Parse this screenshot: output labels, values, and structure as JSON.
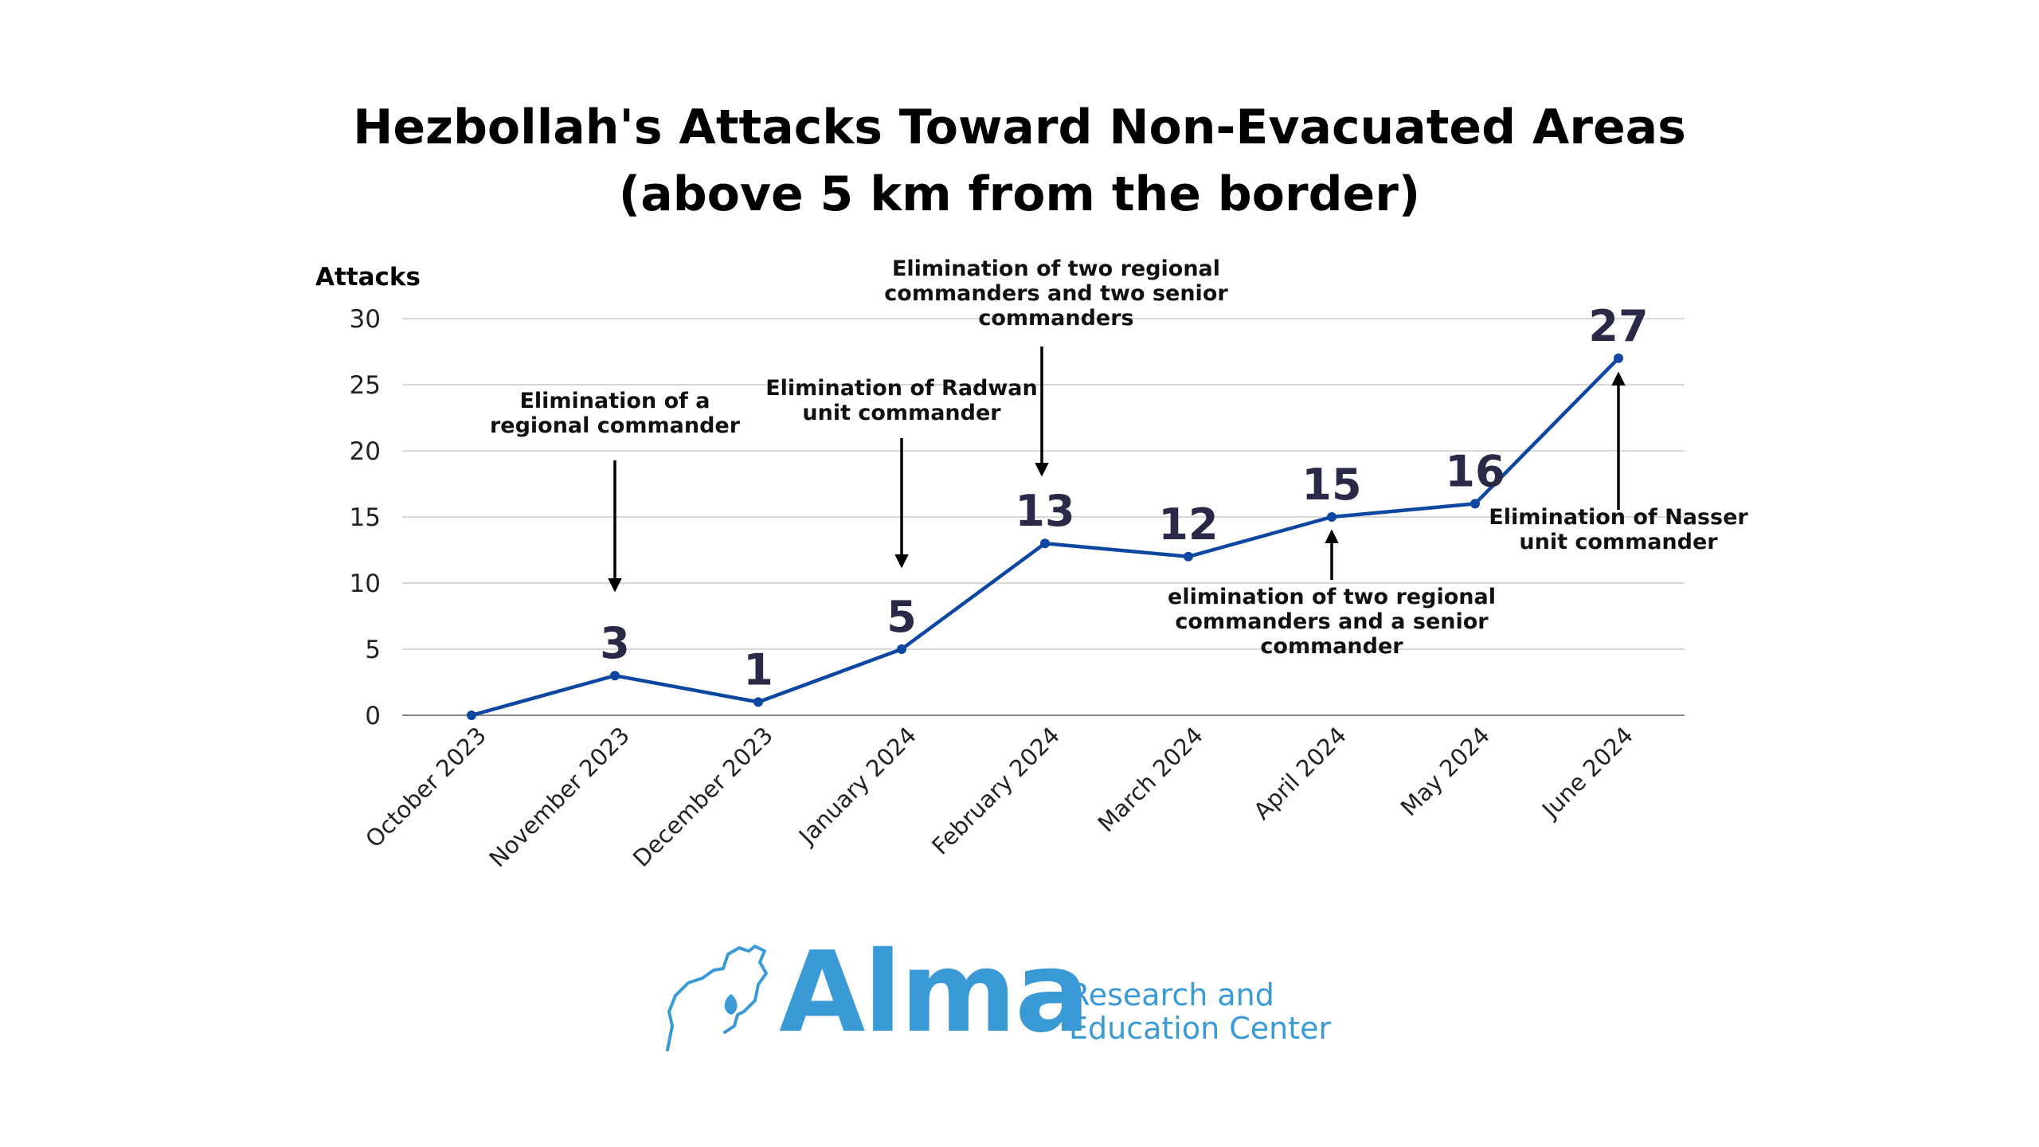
{
  "title_line1": "Hezbollah's Attacks Toward Non-Evacuated Areas",
  "title_line2": "(above 5 km from the border)",
  "chart_data": {
    "type": "line",
    "categories": [
      "October 2023",
      "November 2023",
      "December 2023",
      "January 2024",
      "February 2024",
      "March 2024",
      "April 2024",
      "May 2024",
      "June 2024"
    ],
    "values": [
      0,
      3,
      1,
      5,
      13,
      12,
      15,
      16,
      27
    ],
    "data_labels": [
      "",
      "3",
      "1",
      "5",
      "13",
      "12",
      "15",
      "16",
      "27"
    ],
    "ylabel": "Attacks",
    "ylim": [
      0,
      30
    ],
    "yticks": [
      0,
      5,
      10,
      15,
      20,
      25,
      30
    ],
    "grid": true,
    "line_color": "#0d47a1",
    "label_color": "#2a2a48",
    "annotations": [
      {
        "index": 1,
        "lines": [
          "Elimination of a",
          "regional commander"
        ],
        "position": "above"
      },
      {
        "index": 3,
        "lines": [
          "Elimination of Radwan",
          "unit commander"
        ],
        "position": "above"
      },
      {
        "index": 4,
        "lines": [
          "Elimination of two regional",
          "commanders and two senior",
          "commanders"
        ],
        "position": "above"
      },
      {
        "index": 6,
        "lines": [
          "elimination of two regional",
          "commanders and a senior",
          "commander"
        ],
        "position": "below"
      },
      {
        "index": 8,
        "lines": [
          "Elimination of Nasser",
          "unit commander"
        ],
        "position": "below"
      }
    ]
  },
  "logo": {
    "name": "Alma",
    "tagline_line1": "Research and",
    "tagline_line2": "Education Center",
    "color": "#3a9ad6",
    "icon": "map-outline-icon"
  }
}
